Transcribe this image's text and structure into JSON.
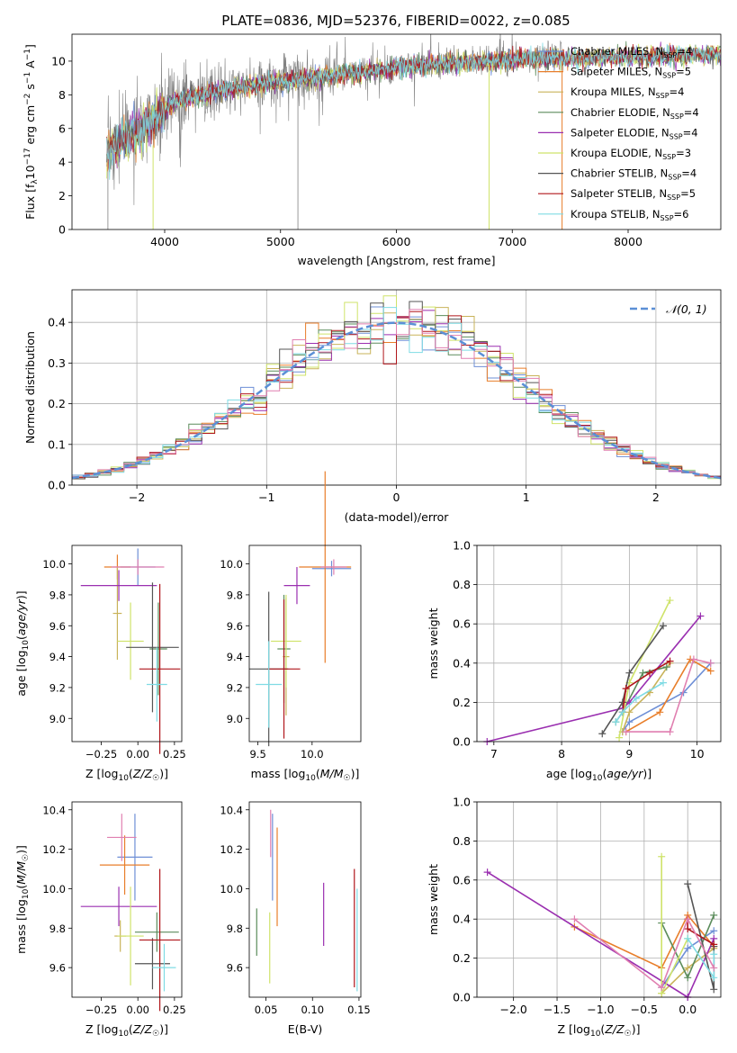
{
  "title": "PLATE=0836, MJD=52376, FIBERID=0022, z=0.085",
  "colors": {
    "Chabrier MILES": "#6e8fd6",
    "Salpeter MILES": "#e87e2a",
    "Kroupa MILES": "#c9b35a",
    "Chabrier ELODIE": "#5b8c5b",
    "Salpeter ELODIE": "#9a2fb0",
    "Kroupa ELODIE": "#cfe36a",
    "Chabrier STELIB": "#555555",
    "Salpeter STELIB": "#b0161b",
    "Kroupa STELIB": "#7fdbe4",
    "data": "#808080",
    "pink": "#e07fb0",
    "normal": "#5b8fd6"
  },
  "chart_data": [
    {
      "id": "spectrum",
      "type": "line",
      "xlabel": "wavelength [Angstrom, rest frame]",
      "ylabel": "Flux [f_λ10^-17 erg cm^-2 s^-1 A^-1]",
      "xlim": [
        3200,
        8800
      ],
      "ylim": [
        0,
        11.6
      ],
      "xticks": [
        4000,
        5000,
        6000,
        7000,
        8000
      ],
      "yticks": [
        0,
        2,
        4,
        6,
        8,
        10
      ],
      "legend_position": "right",
      "legend": [
        "Chabrier MILES, N_SSP=4",
        "Salpeter MILES, N_SSP=5",
        "Kroupa MILES, N_SSP=4",
        "Chabrier ELODIE, N_SSP=4",
        "Salpeter ELODIE, N_SSP=4",
        "Kroupa ELODIE, N_SSP=3",
        "Chabrier STELIB, N_SSP=4",
        "Salpeter STELIB, N_SSP=5",
        "Kroupa STELIB, N_SSP=6"
      ],
      "continuum_x": [
        3500,
        3700,
        3900,
        4100,
        4300,
        4600,
        5000,
        5500,
        6000,
        6500,
        7000,
        7400,
        7800,
        8200,
        8700
      ],
      "continuum_y": [
        4.6,
        5.6,
        6.6,
        7.6,
        8.0,
        8.4,
        8.8,
        9.2,
        9.6,
        9.9,
        10.1,
        10.2,
        10.2,
        10.3,
        10.4
      ]
    },
    {
      "id": "residuals",
      "type": "line",
      "xlabel": "(data-model)/error",
      "ylabel": "Normed distribution",
      "xlim": [
        -2.5,
        2.5
      ],
      "ylim": [
        0,
        0.48
      ],
      "xticks": [
        -2,
        -1,
        0,
        1,
        2
      ],
      "yticks": [
        0.0,
        0.1,
        0.2,
        0.3,
        0.4
      ],
      "grid": true,
      "legend": [
        "𝒩(0, 1)"
      ],
      "legend_position": "top-right"
    },
    {
      "id": "age-vs-Z",
      "type": "scatter",
      "xlabel": "Z [log10(Z/Z☉)]",
      "ylabel": "age  [log10(age/yr)]",
      "xlim": [
        -0.45,
        0.3
      ],
      "ylim": [
        8.85,
        10.12
      ],
      "xticks": [
        -0.25,
        0.0,
        0.25
      ],
      "yticks": [
        9.0,
        9.2,
        9.4,
        9.6,
        9.8,
        10.0
      ],
      "points": [
        {
          "name": "Chabrier MILES",
          "x": 0.0,
          "y": 9.98,
          "xerr": 0.12,
          "yerr": 0.12
        },
        {
          "name": "Salpeter MILES",
          "x": -0.14,
          "y": 9.98,
          "xerr": 0.09,
          "yerr": 0.08
        },
        {
          "name": "Kroupa MILES",
          "x": -0.14,
          "y": 9.68,
          "xerr": 0.03,
          "yerr": 0.3
        },
        {
          "name": "Chabrier ELODIE",
          "x": 0.14,
          "y": 9.45,
          "xerr": 0.06,
          "yerr": 0.3
        },
        {
          "name": "Salpeter ELODIE",
          "x": -0.13,
          "y": 9.86,
          "xerr": 0.26,
          "yerr": 0.1
        },
        {
          "name": "Kroupa ELODIE",
          "x": -0.05,
          "y": 9.5,
          "xerr": 0.09,
          "yerr": 0.25
        },
        {
          "name": "Chabrier STELIB",
          "x": 0.1,
          "y": 9.46,
          "xerr": 0.18,
          "yerr": 0.42
        },
        {
          "name": "Salpeter STELIB",
          "x": 0.15,
          "y": 9.32,
          "xerr": 0.14,
          "yerr": 0.55
        },
        {
          "name": "Kroupa STELIB",
          "x": 0.13,
          "y": 9.22,
          "xerr": 0.07,
          "yerr": 0.24
        },
        {
          "name": "pink",
          "x": 0.0,
          "y": 9.98,
          "xerr": 0.18,
          "yerr": 0.05
        }
      ]
    },
    {
      "id": "age-vs-mass",
      "type": "scatter",
      "xlabel": "mass [log10(M/M☉)]",
      "ylabel": "",
      "xlim": [
        9.42,
        10.45
      ],
      "ylim": [
        8.85,
        10.12
      ],
      "xticks": [
        9.5,
        10.0
      ],
      "yticks": [
        9.0,
        9.2,
        9.4,
        9.6,
        9.8,
        10.0
      ],
      "points": [
        {
          "name": "Chabrier MILES",
          "x": 10.18,
          "y": 9.97,
          "xerr": 0.18,
          "yerr": 0.05
        },
        {
          "name": "Salpeter MILES",
          "x": 10.12,
          "y": 9.98,
          "xerr": 0.24,
          "yerr": 0.62
        },
        {
          "name": "Kroupa MILES",
          "x": 9.76,
          "y": 9.4,
          "xerr": 0.03,
          "yerr": 0.38
        },
        {
          "name": "Chabrier ELODIE",
          "x": 9.74,
          "y": 9.45,
          "xerr": 0.06,
          "yerr": 0.35
        },
        {
          "name": "Salpeter ELODIE",
          "x": 9.86,
          "y": 9.86,
          "xerr": 0.12,
          "yerr": 0.12
        },
        {
          "name": "Kroupa ELODIE",
          "x": 9.76,
          "y": 9.5,
          "xerr": 0.14,
          "yerr": 0.3
        },
        {
          "name": "Chabrier STELIB",
          "x": 9.6,
          "y": 9.32,
          "xerr": 0.18,
          "yerr": 0.5
        },
        {
          "name": "Salpeter STELIB",
          "x": 9.74,
          "y": 9.32,
          "xerr": 0.15,
          "yerr": 0.45
        },
        {
          "name": "Kroupa STELIB",
          "x": 9.6,
          "y": 9.22,
          "xerr": 0.12,
          "yerr": 0.28
        },
        {
          "name": "pink",
          "x": 10.2,
          "y": 9.98,
          "xerr": 0.12,
          "yerr": 0.05
        }
      ]
    },
    {
      "id": "massweight-vs-age",
      "type": "line",
      "xlabel": "age  [log10(age/yr)]",
      "ylabel": "mass weight",
      "xlim": [
        6.75,
        10.35
      ],
      "ylim": [
        0,
        1
      ],
      "xticks": [
        7,
        8,
        9,
        10
      ],
      "yticks": [
        0.0,
        0.2,
        0.4,
        0.6,
        0.8,
        1.0
      ],
      "grid": true,
      "series": [
        {
          "name": "Chabrier MILES",
          "x": [
            8.9,
            9.0,
            9.8,
            10.2
          ],
          "y": [
            0.05,
            0.1,
            0.25,
            0.4
          ]
        },
        {
          "name": "Salpeter MILES",
          "x": [
            8.95,
            9.45,
            9.9,
            10.2
          ],
          "y": [
            0.05,
            0.15,
            0.42,
            0.36
          ]
        },
        {
          "name": "Kroupa MILES",
          "x": [
            8.9,
            9.0,
            9.3,
            9.6
          ],
          "y": [
            0.05,
            0.15,
            0.25,
            0.4
          ]
        },
        {
          "name": "Chabrier ELODIE",
          "x": [
            8.8,
            8.9,
            9.2,
            9.55
          ],
          "y": [
            0.1,
            0.15,
            0.35,
            0.38
          ]
        },
        {
          "name": "Salpeter ELODIE",
          "x": [
            6.9,
            8.9,
            9.0,
            10.05
          ],
          "y": [
            0.0,
            0.17,
            0.2,
            0.64
          ]
        },
        {
          "name": "Kroupa ELODIE",
          "x": [
            8.85,
            9.0,
            9.6
          ],
          "y": [
            0.02,
            0.3,
            0.72
          ]
        },
        {
          "name": "Chabrier STELIB",
          "x": [
            8.6,
            8.9,
            9.0,
            9.5
          ],
          "y": [
            0.04,
            0.2,
            0.35,
            0.59
          ]
        },
        {
          "name": "Salpeter STELIB",
          "x": [
            8.9,
            8.95,
            9.3,
            9.6
          ],
          "y": [
            0.15,
            0.27,
            0.35,
            0.41
          ]
        },
        {
          "name": "Kroupa STELIB",
          "x": [
            8.8,
            8.9,
            9.1,
            9.5
          ],
          "y": [
            0.1,
            0.15,
            0.22,
            0.3
          ]
        },
        {
          "name": "pink",
          "x": [
            8.95,
            9.6,
            9.95,
            10.2
          ],
          "y": [
            0.05,
            0.05,
            0.42,
            0.4
          ]
        }
      ]
    },
    {
      "id": "mass-vs-Z",
      "type": "scatter",
      "xlabel": "Z [log10(Z/Z☉)]",
      "ylabel": "mass [log10(M/M☉)]",
      "xlim": [
        -0.45,
        0.3
      ],
      "ylim": [
        9.45,
        10.44
      ],
      "xticks": [
        -0.25,
        0.0,
        0.25
      ],
      "yticks": [
        9.6,
        9.8,
        10.0,
        10.2,
        10.4
      ],
      "points": [
        {
          "name": "Chabrier MILES",
          "x": -0.02,
          "y": 10.16,
          "xerr": 0.12,
          "yerr": 0.22
        },
        {
          "name": "Salpeter MILES",
          "x": -0.09,
          "y": 10.12,
          "xerr": 0.17,
          "yerr": 0.15
        },
        {
          "name": "Kroupa MILES",
          "x": -0.12,
          "y": 9.76,
          "xerr": 0.04,
          "yerr": 0.08
        },
        {
          "name": "Chabrier ELODIE",
          "x": 0.13,
          "y": 9.78,
          "xerr": 0.15,
          "yerr": 0.1
        },
        {
          "name": "Salpeter ELODIE",
          "x": -0.13,
          "y": 9.91,
          "xerr": 0.26,
          "yerr": 0.1
        },
        {
          "name": "Kroupa ELODIE",
          "x": -0.05,
          "y": 9.76,
          "xerr": 0.09,
          "yerr": 0.25
        },
        {
          "name": "Chabrier STELIB",
          "x": 0.1,
          "y": 9.62,
          "xerr": 0.12,
          "yerr": 0.13
        },
        {
          "name": "Salpeter STELIB",
          "x": 0.15,
          "y": 9.74,
          "xerr": 0.14,
          "yerr": 0.36
        },
        {
          "name": "Kroupa STELIB",
          "x": 0.18,
          "y": 9.6,
          "xerr": 0.08,
          "yerr": 0.12
        },
        {
          "name": "pink",
          "x": -0.11,
          "y": 10.26,
          "xerr": 0.1,
          "yerr": 0.12
        }
      ]
    },
    {
      "id": "mass-vs-EBV",
      "type": "scatter",
      "xlabel": "E(B-V)",
      "ylabel": "",
      "xlim": [
        0.032,
        0.152
      ],
      "ylim": [
        9.45,
        10.44
      ],
      "xticks": [
        0.05,
        0.1,
        0.15
      ],
      "yticks": [
        9.6,
        9.8,
        10.0,
        10.2,
        10.4
      ],
      "points": [
        {
          "name": "Chabrier MILES",
          "x": 0.057,
          "y": 10.16,
          "xerr": 0,
          "yerr": 0.22
        },
        {
          "name": "Salpeter MILES",
          "x": 0.062,
          "y": 10.06,
          "xerr": 0,
          "yerr": 0.25
        },
        {
          "name": "Chabrier ELODIE",
          "x": 0.04,
          "y": 9.78,
          "xerr": 0,
          "yerr": 0.12
        },
        {
          "name": "Salpeter ELODIE",
          "x": 0.112,
          "y": 9.87,
          "xerr": 0,
          "yerr": 0.16
        },
        {
          "name": "Kroupa ELODIE",
          "x": 0.054,
          "y": 9.7,
          "xerr": 0,
          "yerr": 0.18
        },
        {
          "name": "Salpeter STELIB",
          "x": 0.145,
          "y": 9.8,
          "xerr": 0,
          "yerr": 0.3
        },
        {
          "name": "Kroupa STELIB",
          "x": 0.148,
          "y": 9.74,
          "xerr": 0,
          "yerr": 0.26
        },
        {
          "name": "pink",
          "x": 0.055,
          "y": 10.28,
          "xerr": 0,
          "yerr": 0.12
        }
      ]
    },
    {
      "id": "massweight-vs-Z",
      "type": "line",
      "xlabel": "Z [log10(Z/Z☉)]",
      "ylabel": "mass weight",
      "xlim": [
        -2.42,
        0.38
      ],
      "ylim": [
        0,
        1
      ],
      "xticks": [
        -2.0,
        -1.5,
        -1.0,
        -0.5,
        0.0
      ],
      "yticks": [
        0.0,
        0.2,
        0.4,
        0.6,
        0.8,
        1.0
      ],
      "grid": true,
      "series": [
        {
          "name": "Chabrier MILES",
          "x": [
            -0.3,
            0.0,
            0.3
          ],
          "y": [
            0.05,
            0.25,
            0.34
          ]
        },
        {
          "name": "Salpeter MILES",
          "x": [
            -1.3,
            -0.3,
            0.0,
            0.3
          ],
          "y": [
            0.36,
            0.15,
            0.42,
            0.26
          ]
        },
        {
          "name": "Kroupa MILES",
          "x": [
            -0.3,
            0.0,
            0.3
          ],
          "y": [
            0.02,
            0.15,
            0.25
          ]
        },
        {
          "name": "Chabrier ELODIE",
          "x": [
            -0.3,
            0.0,
            0.3
          ],
          "y": [
            0.38,
            0.1,
            0.42
          ]
        },
        {
          "name": "Salpeter ELODIE",
          "x": [
            -2.3,
            -0.0,
            0.3
          ],
          "y": [
            0.64,
            0.0,
            0.3
          ]
        },
        {
          "name": "Kroupa ELODIE",
          "x": [
            -0.3,
            -0.3,
            0.0
          ],
          "y": [
            0.72,
            0.02,
            0.3
          ]
        },
        {
          "name": "Chabrier STELIB",
          "x": [
            0.0,
            0.3,
            0.3
          ],
          "y": [
            0.58,
            0.04,
            0.26
          ]
        },
        {
          "name": "Salpeter STELIB",
          "x": [
            0.0,
            0.0,
            0.3
          ],
          "y": [
            0.4,
            0.35,
            0.27
          ]
        },
        {
          "name": "Kroupa STELIB",
          "x": [
            0.0,
            0.3,
            0.3
          ],
          "y": [
            0.3,
            0.1,
            0.22
          ]
        },
        {
          "name": "pink",
          "x": [
            -1.3,
            -0.3,
            0.0,
            0.3
          ],
          "y": [
            0.4,
            0.05,
            0.4,
            0.15
          ]
        }
      ]
    }
  ]
}
